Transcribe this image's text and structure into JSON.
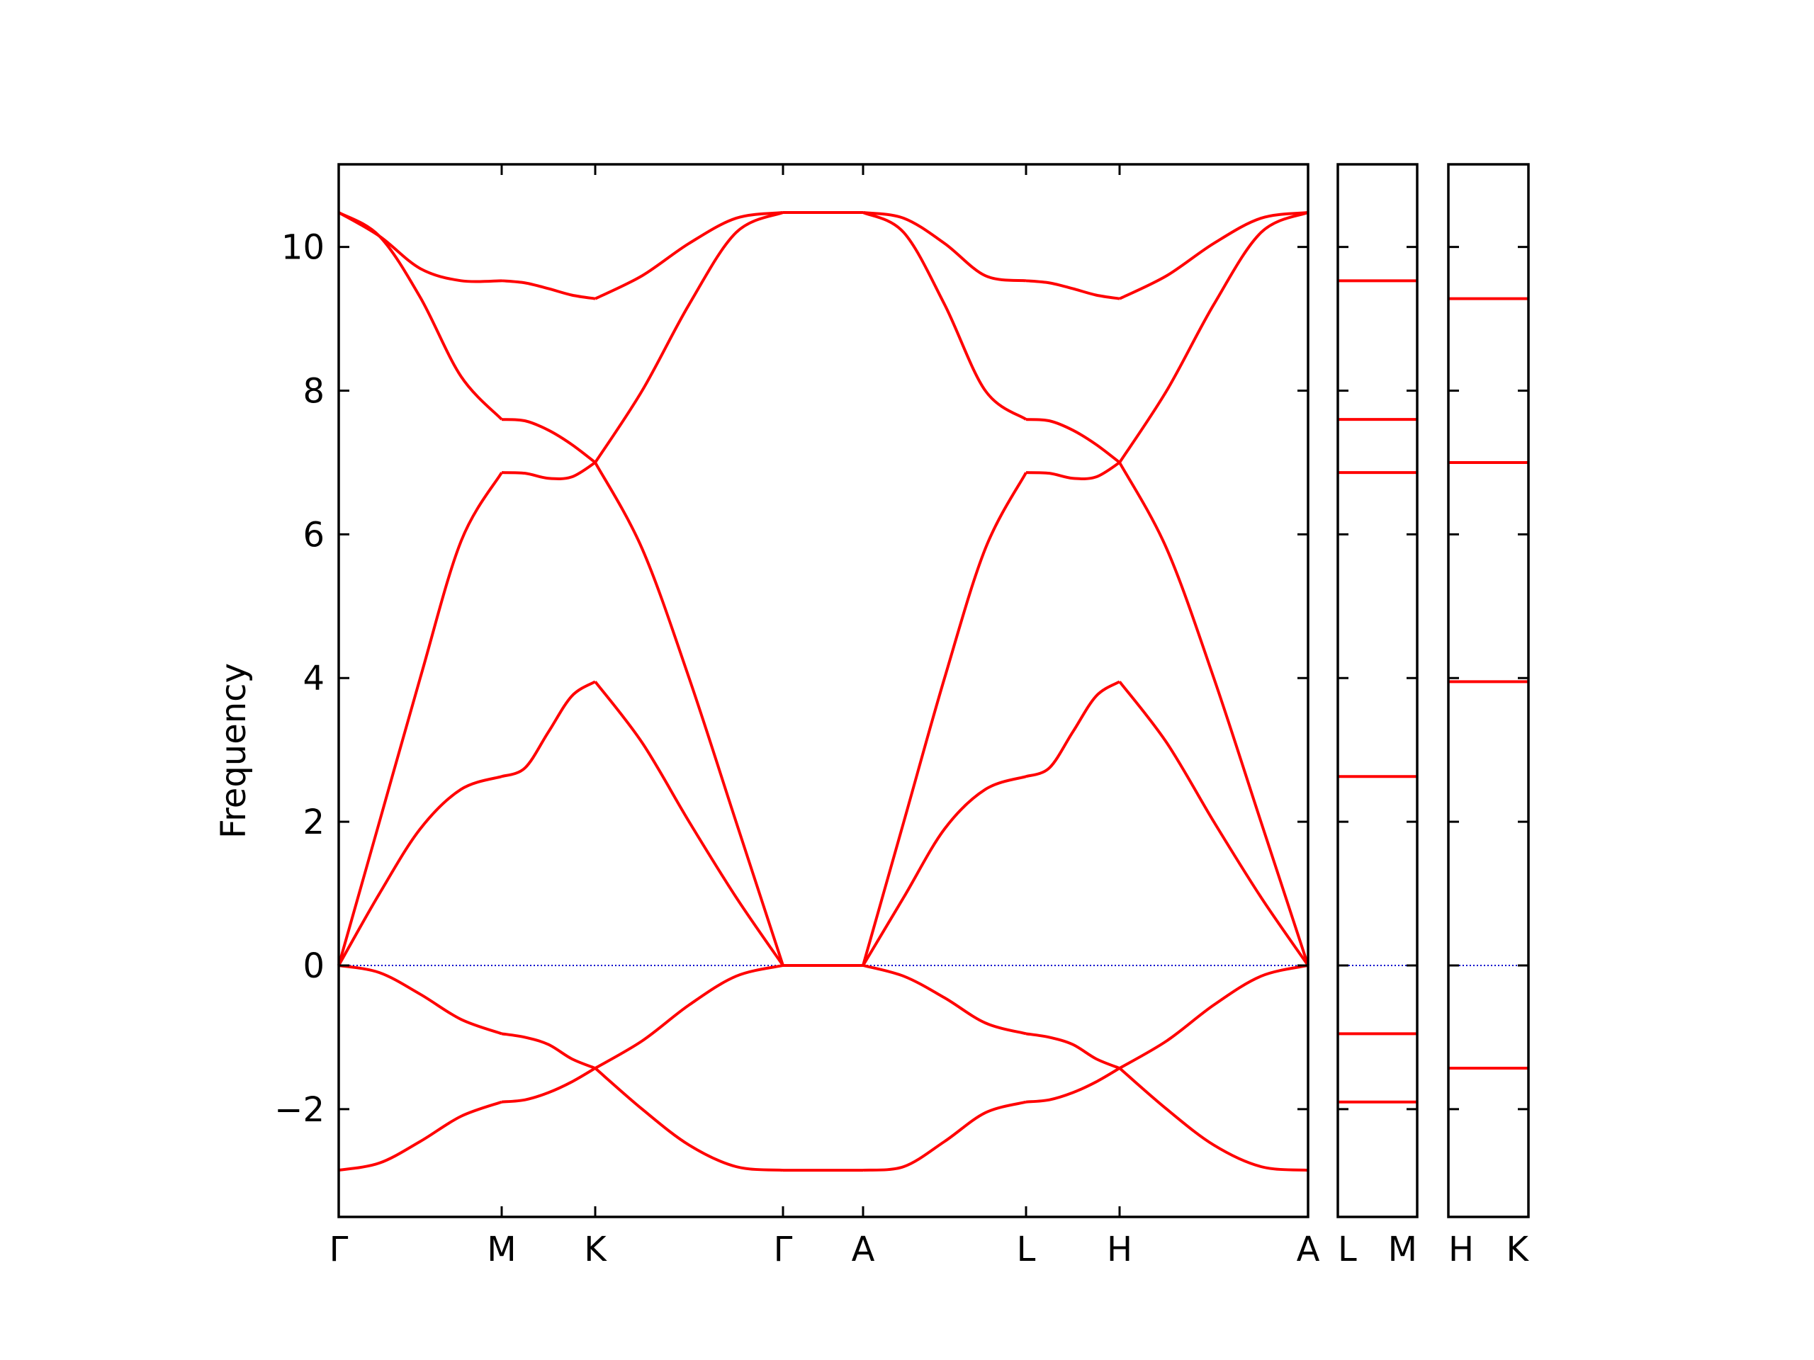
{
  "chart_data": {
    "type": "line",
    "ylabel": "Frequency",
    "ylim": [
      -3.5,
      11.15
    ],
    "yticks": [
      -2,
      0,
      2,
      4,
      6,
      8,
      10
    ],
    "ytick_labels": [
      "−2",
      "0",
      "2",
      "4",
      "6",
      "8",
      "10"
    ],
    "grid": false,
    "line_color": "#ff0000",
    "zero_line_color": "#0000cc",
    "panels": [
      {
        "path": [
          "Γ",
          "M",
          "K",
          "Γ",
          "A",
          "L",
          "H",
          "A"
        ],
        "segments": [
          {
            "from": "Γ",
            "to": "M",
            "x": [
              0,
              0.25,
              0.5,
              0.75,
              1
            ],
            "bands": [
              [
                10.48,
                10.15,
                9.7,
                9.53,
                9.53
              ],
              [
                10.48,
                10.15,
                9.3,
                8.2,
                7.6
              ],
              [
                0,
                2.0,
                4.0,
                5.9,
                6.86
              ],
              [
                0,
                1.0,
                1.9,
                2.45,
                2.63
              ],
              [
                0,
                -0.1,
                -0.4,
                -0.75,
                -0.95
              ],
              [
                -2.85,
                -2.75,
                -2.45,
                -2.1,
                -1.9
              ]
            ]
          },
          {
            "from": "M",
            "to": "K",
            "x": [
              0,
              0.25,
              0.5,
              0.75,
              1
            ],
            "bands": [
              [
                9.53,
                9.5,
                9.42,
                9.33,
                9.28
              ],
              [
                7.6,
                7.58,
                7.45,
                7.25,
                7.0
              ],
              [
                6.86,
                6.85,
                6.78,
                6.8,
                7.0
              ],
              [
                2.63,
                2.75,
                3.25,
                3.75,
                3.95
              ],
              [
                -0.95,
                -1.0,
                -1.1,
                -1.3,
                -1.43
              ],
              [
                -1.9,
                -1.87,
                -1.77,
                -1.62,
                -1.43
              ]
            ]
          },
          {
            "from": "K",
            "to": "Γ",
            "x": [
              0,
              0.25,
              0.5,
              0.75,
              1
            ],
            "bands": [
              [
                9.28,
                9.6,
                10.05,
                10.4,
                10.48
              ],
              [
                7.0,
                8.0,
                9.2,
                10.2,
                10.48
              ],
              [
                7.0,
                5.8,
                4.0,
                2.0,
                0
              ],
              [
                3.95,
                3.1,
                2.0,
                0.95,
                0
              ],
              [
                -1.43,
                -1.05,
                -0.55,
                -0.15,
                0
              ],
              [
                -1.43,
                -2.0,
                -2.5,
                -2.8,
                -2.85
              ]
            ]
          },
          {
            "from": "Γ",
            "to": "A",
            "x": [
              0,
              1
            ],
            "bands": [
              [
                10.48,
                10.48
              ],
              [
                10.48,
                10.48
              ],
              [
                0,
                0
              ],
              [
                0,
                0
              ],
              [
                0,
                0
              ],
              [
                -2.85,
                -2.85
              ]
            ]
          },
          {
            "from": "A",
            "to": "L",
            "x": [
              0,
              0.25,
              0.5,
              0.75,
              1
            ],
            "bands": [
              [
                10.48,
                10.4,
                10.05,
                9.6,
                9.53
              ],
              [
                10.48,
                10.2,
                9.2,
                8.0,
                7.6
              ],
              [
                0,
                2.0,
                4.0,
                5.8,
                6.86
              ],
              [
                0,
                0.95,
                1.9,
                2.45,
                2.63
              ],
              [
                0,
                -0.15,
                -0.45,
                -0.8,
                -0.95
              ],
              [
                -2.85,
                -2.8,
                -2.45,
                -2.05,
                -1.9
              ]
            ]
          },
          {
            "from": "L",
            "to": "H",
            "x": [
              0,
              0.25,
              0.5,
              0.75,
              1
            ],
            "bands": [
              [
                9.53,
                9.5,
                9.42,
                9.33,
                9.28
              ],
              [
                7.6,
                7.58,
                7.45,
                7.25,
                7.0
              ],
              [
                6.86,
                6.85,
                6.78,
                6.8,
                7.0
              ],
              [
                2.63,
                2.75,
                3.25,
                3.75,
                3.95
              ],
              [
                -0.95,
                -1.0,
                -1.1,
                -1.3,
                -1.43
              ],
              [
                -1.9,
                -1.87,
                -1.77,
                -1.62,
                -1.43
              ]
            ]
          },
          {
            "from": "H",
            "to": "A",
            "x": [
              0,
              0.25,
              0.5,
              0.75,
              1
            ],
            "bands": [
              [
                9.28,
                9.6,
                10.05,
                10.4,
                10.48
              ],
              [
                7.0,
                8.0,
                9.2,
                10.2,
                10.48
              ],
              [
                7.0,
                5.8,
                4.0,
                2.0,
                0
              ],
              [
                3.95,
                3.1,
                2.0,
                0.95,
                0
              ],
              [
                -1.43,
                -1.05,
                -0.55,
                -0.15,
                0
              ],
              [
                -1.43,
                -2.0,
                -2.5,
                -2.8,
                -2.85
              ]
            ]
          }
        ]
      },
      {
        "path": [
          "L",
          "M"
        ],
        "flat_bands": [
          9.53,
          7.6,
          6.86,
          2.63,
          -0.95,
          -1.9
        ]
      },
      {
        "path": [
          "H",
          "K"
        ],
        "flat_bands": [
          9.28,
          7.0,
          3.95,
          -1.43
        ]
      }
    ]
  }
}
